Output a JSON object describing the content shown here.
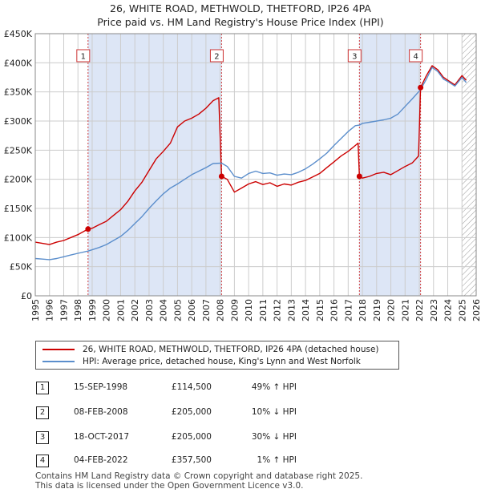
{
  "title": {
    "line1": "26, WHITE ROAD, METHWOLD, THETFORD, IP26 4PA",
    "line2": "Price paid vs. HM Land Registry's House Price Index (HPI)"
  },
  "colors": {
    "property": "#cc0000",
    "hpi": "#5b8ecc",
    "shade": "#dde6f6",
    "marker_line": "#d04040",
    "grid": "#cccccc"
  },
  "chart_data": {
    "type": "line",
    "title": "26, WHITE ROAD, METHWOLD, THETFORD, IP26 4PA — Price paid vs. HM Land Registry's House Price Index (HPI)",
    "xlim": [
      1995,
      2026
    ],
    "ylim": [
      0,
      450000
    ],
    "x_ticks": [
      1995,
      1996,
      1997,
      1998,
      1999,
      2000,
      2001,
      2002,
      2003,
      2004,
      2005,
      2006,
      2007,
      2008,
      2009,
      2010,
      2011,
      2012,
      2013,
      2014,
      2015,
      2016,
      2017,
      2018,
      2019,
      2020,
      2021,
      2022,
      2023,
      2024,
      2025,
      2026
    ],
    "y_ticks": [
      {
        "value": 0,
        "label": "£0"
      },
      {
        "value": 50000,
        "label": "£50K"
      },
      {
        "value": 100000,
        "label": "£100K"
      },
      {
        "value": 150000,
        "label": "£150K"
      },
      {
        "value": 200000,
        "label": "£200K"
      },
      {
        "value": 250000,
        "label": "£250K"
      },
      {
        "value": 300000,
        "label": "£300K"
      },
      {
        "value": 350000,
        "label": "£350K"
      },
      {
        "value": 400000,
        "label": "£400K"
      },
      {
        "value": 450000,
        "label": "£450K"
      }
    ],
    "shaded_spans": [
      [
        1998.71,
        2008.1
      ],
      [
        2017.79,
        2022.09
      ]
    ],
    "hatched_from": 2025.0,
    "series": [
      {
        "name": "26, WHITE ROAD, METHWOLD, THETFORD, IP26 4PA (detached house)",
        "role": "property",
        "points": [
          [
            1995.0,
            92000
          ],
          [
            1995.5,
            90000
          ],
          [
            1996.0,
            88000
          ],
          [
            1996.5,
            92000
          ],
          [
            1997.0,
            95000
          ],
          [
            1997.5,
            100000
          ],
          [
            1998.0,
            105000
          ],
          [
            1998.71,
            114500
          ],
          [
            1999.0,
            116000
          ],
          [
            1999.5,
            122000
          ],
          [
            2000.0,
            128000
          ],
          [
            2000.5,
            138000
          ],
          [
            2001.0,
            148000
          ],
          [
            2001.5,
            162000
          ],
          [
            2002.0,
            180000
          ],
          [
            2002.5,
            195000
          ],
          [
            2003.0,
            215000
          ],
          [
            2003.5,
            235000
          ],
          [
            2004.0,
            248000
          ],
          [
            2004.5,
            262000
          ],
          [
            2005.0,
            290000
          ],
          [
            2005.5,
            300000
          ],
          [
            2006.0,
            305000
          ],
          [
            2006.5,
            312000
          ],
          [
            2007.0,
            322000
          ],
          [
            2007.5,
            335000
          ],
          [
            2007.9,
            340000
          ],
          [
            2008.1,
            205000
          ],
          [
            2008.5,
            200000
          ],
          [
            2009.0,
            178000
          ],
          [
            2009.5,
            185000
          ],
          [
            2010.0,
            192000
          ],
          [
            2010.5,
            196000
          ],
          [
            2011.0,
            191000
          ],
          [
            2011.5,
            194000
          ],
          [
            2012.0,
            188000
          ],
          [
            2012.5,
            192000
          ],
          [
            2013.0,
            190000
          ],
          [
            2013.5,
            195000
          ],
          [
            2014.0,
            198000
          ],
          [
            2014.5,
            204000
          ],
          [
            2015.0,
            210000
          ],
          [
            2015.5,
            220000
          ],
          [
            2016.0,
            230000
          ],
          [
            2016.5,
            240000
          ],
          [
            2017.0,
            248000
          ],
          [
            2017.5,
            258000
          ],
          [
            2017.7,
            262000
          ],
          [
            2017.79,
            205000
          ],
          [
            2018.0,
            202000
          ],
          [
            2018.5,
            205000
          ],
          [
            2019.0,
            210000
          ],
          [
            2019.5,
            212000
          ],
          [
            2020.0,
            208000
          ],
          [
            2020.5,
            215000
          ],
          [
            2021.0,
            222000
          ],
          [
            2021.5,
            228000
          ],
          [
            2021.95,
            240000
          ],
          [
            2022.09,
            357500
          ],
          [
            2022.5,
            378000
          ],
          [
            2022.9,
            395000
          ],
          [
            2023.3,
            388000
          ],
          [
            2023.7,
            375000
          ],
          [
            2024.0,
            370000
          ],
          [
            2024.5,
            362000
          ],
          [
            2025.0,
            378000
          ],
          [
            2025.3,
            370000
          ]
        ]
      },
      {
        "name": "HPI: Average price, detached house, King's Lynn and West Norfolk",
        "role": "hpi",
        "points": [
          [
            1995.0,
            64000
          ],
          [
            1995.5,
            63000
          ],
          [
            1996.0,
            62000
          ],
          [
            1996.5,
            64000
          ],
          [
            1997.0,
            67000
          ],
          [
            1997.5,
            70000
          ],
          [
            1998.0,
            73000
          ],
          [
            1998.71,
            76800
          ],
          [
            1999.0,
            79000
          ],
          [
            1999.5,
            83000
          ],
          [
            2000.0,
            88000
          ],
          [
            2000.5,
            95000
          ],
          [
            2001.0,
            102000
          ],
          [
            2001.5,
            112000
          ],
          [
            2002.0,
            124000
          ],
          [
            2002.5,
            136000
          ],
          [
            2003.0,
            150000
          ],
          [
            2003.5,
            163000
          ],
          [
            2004.0,
            175000
          ],
          [
            2004.5,
            185000
          ],
          [
            2005.0,
            192000
          ],
          [
            2005.5,
            200000
          ],
          [
            2006.0,
            208000
          ],
          [
            2006.5,
            214000
          ],
          [
            2007.0,
            220000
          ],
          [
            2007.5,
            227000
          ],
          [
            2008.1,
            227800
          ],
          [
            2008.5,
            222000
          ],
          [
            2009.0,
            205000
          ],
          [
            2009.5,
            202000
          ],
          [
            2010.0,
            210000
          ],
          [
            2010.5,
            214000
          ],
          [
            2011.0,
            210000
          ],
          [
            2011.5,
            211000
          ],
          [
            2012.0,
            207000
          ],
          [
            2012.5,
            209000
          ],
          [
            2013.0,
            208000
          ],
          [
            2013.5,
            212000
          ],
          [
            2014.0,
            218000
          ],
          [
            2014.5,
            226000
          ],
          [
            2015.0,
            235000
          ],
          [
            2015.5,
            245000
          ],
          [
            2016.0,
            258000
          ],
          [
            2016.5,
            270000
          ],
          [
            2017.0,
            282000
          ],
          [
            2017.5,
            292000
          ],
          [
            2017.79,
            293000
          ],
          [
            2018.0,
            296000
          ],
          [
            2018.5,
            298000
          ],
          [
            2019.0,
            300000
          ],
          [
            2019.5,
            302000
          ],
          [
            2020.0,
            305000
          ],
          [
            2020.5,
            312000
          ],
          [
            2021.0,
            325000
          ],
          [
            2021.5,
            338000
          ],
          [
            2022.09,
            354000
          ],
          [
            2022.5,
            372000
          ],
          [
            2022.9,
            392000
          ],
          [
            2023.3,
            385000
          ],
          [
            2023.7,
            372000
          ],
          [
            2024.0,
            368000
          ],
          [
            2024.5,
            360000
          ],
          [
            2025.0,
            375000
          ],
          [
            2025.3,
            366000
          ]
        ]
      }
    ],
    "sales": [
      {
        "n": "1",
        "x": 1998.71,
        "price": 114500
      },
      {
        "n": "2",
        "x": 2008.1,
        "price": 205000
      },
      {
        "n": "3",
        "x": 2017.79,
        "price": 205000
      },
      {
        "n": "4",
        "x": 2022.09,
        "price": 357500
      }
    ]
  },
  "legend": {
    "property_label": "26, WHITE ROAD, METHWOLD, THETFORD, IP26 4PA (detached house)",
    "hpi_label": "HPI: Average price, detached house, King's Lynn and West Norfolk"
  },
  "sales_table": [
    {
      "n": "1",
      "date": "15-SEP-1998",
      "price": "£114,500",
      "hpi": "49% ↑ HPI"
    },
    {
      "n": "2",
      "date": "08-FEB-2008",
      "price": "£205,000",
      "hpi": "10% ↓ HPI"
    },
    {
      "n": "3",
      "date": "18-OCT-2017",
      "price": "£205,000",
      "hpi": "30% ↓ HPI"
    },
    {
      "n": "4",
      "date": "04-FEB-2022",
      "price": "£357,500",
      "hpi": "1% ↑ HPI"
    }
  ],
  "footer": {
    "line1": "Contains HM Land Registry data © Crown copyright and database right 2025.",
    "line2": "This data is licensed under the Open Government Licence v3.0."
  }
}
